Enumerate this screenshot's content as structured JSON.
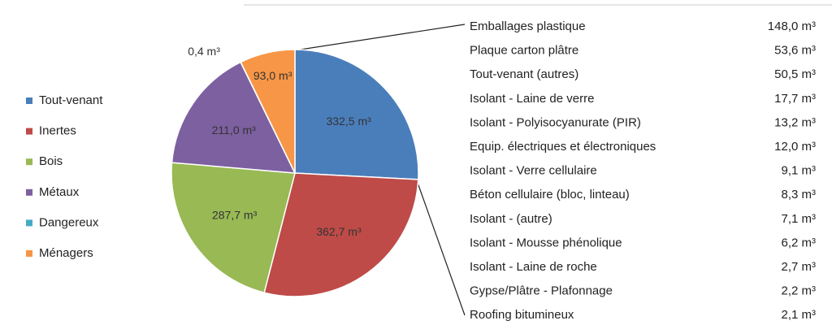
{
  "chart_data": {
    "type": "pie",
    "categories": [
      "Tout-venant",
      "Inertes",
      "Bois",
      "Métaux",
      "Dangereux",
      "Ménagers"
    ],
    "values": [
      332.5,
      362.7,
      287.7,
      211.0,
      0.4,
      93.0
    ],
    "value_labels": [
      "332,5 m³",
      "362,7 m³",
      "287,7 m³",
      "211,0 m³",
      "0,4 m³",
      "93,0 m³"
    ],
    "colors": [
      "#4a7ebb",
      "#be4b48",
      "#98b954",
      "#7d60a0",
      "#46aac5",
      "#f79646"
    ],
    "legend": "left",
    "breakdown": [
      {
        "name": "Emballages plastique",
        "value": "148,0 m³"
      },
      {
        "name": "Plaque carton plâtre",
        "value": "53,6 m³"
      },
      {
        "name": "Tout-venant (autres)",
        "value": "50,5 m³"
      },
      {
        "name": "Isolant - Laine de verre",
        "value": "17,7 m³"
      },
      {
        "name": "Isolant - Polyisocyanurate (PIR)",
        "value": "13,2 m³"
      },
      {
        "name": "Equip. électriques et électroniques",
        "value": "12,0 m³"
      },
      {
        "name": "Isolant - Verre cellulaire",
        "value": "9,1 m³"
      },
      {
        "name": "Béton cellulaire (bloc, linteau)",
        "value": "8,3 m³"
      },
      {
        "name": "Isolant - (autre)",
        "value": "7,1 m³"
      },
      {
        "name": "Isolant - Mousse phénolique",
        "value": "6,2 m³"
      },
      {
        "name": "Isolant - Laine de roche",
        "value": "2,7 m³"
      },
      {
        "name": "Gypse/Plâtre - Plafonnage",
        "value": "2,2 m³"
      },
      {
        "name": "Roofing bitumineux",
        "value": "2,1 m³"
      }
    ]
  }
}
